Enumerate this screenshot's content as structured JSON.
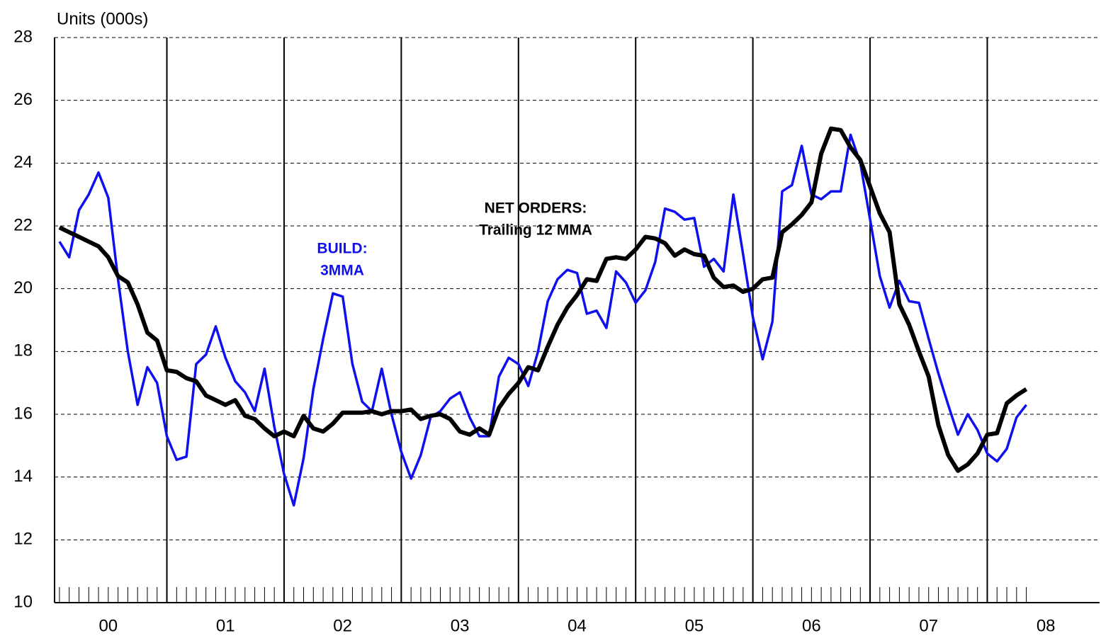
{
  "chart_data": {
    "type": "line",
    "y_axis_label": "Units (000s)",
    "annotations": [
      {
        "lines": [
          "BUILD:",
          "3MMA"
        ],
        "color": "#1010ee"
      },
      {
        "lines": [
          "NET ORDERS:",
          "Trailing 12 MMA"
        ],
        "color": "#000000"
      }
    ],
    "x": [
      1,
      2,
      3,
      4,
      5,
      6,
      7,
      8,
      9,
      10,
      11,
      12,
      13,
      14,
      15,
      16,
      17,
      18,
      19,
      20,
      21,
      22,
      23,
      24,
      25,
      26,
      27,
      28,
      29,
      30,
      31,
      32,
      33,
      34,
      35,
      36,
      37,
      38,
      39,
      40,
      41,
      42,
      43,
      44,
      45,
      46,
      47,
      48,
      49,
      50,
      51,
      52,
      53,
      54,
      55,
      56,
      57,
      58,
      59,
      60,
      61,
      62,
      63,
      64,
      65,
      66,
      67,
      68,
      69,
      70,
      71,
      72,
      73,
      74,
      75,
      76,
      77,
      78,
      79,
      80,
      81,
      82,
      83,
      84,
      85,
      86,
      87,
      88,
      89,
      90,
      91,
      92,
      93,
      94,
      95,
      96,
      97,
      98,
      99,
      100
    ],
    "series": [
      {
        "name": "BUILD: 3MMA",
        "color": "#1010ee",
        "values": [
          21.5,
          21.0,
          22.5,
          23.0,
          23.7,
          22.9,
          20.3,
          18.0,
          16.3,
          17.5,
          17.0,
          15.3,
          14.55,
          14.65,
          17.6,
          17.9,
          18.8,
          17.8,
          17.05,
          16.7,
          16.1,
          17.45,
          15.6,
          14.1,
          13.1,
          14.6,
          16.8,
          18.4,
          19.85,
          19.75,
          17.6,
          16.4,
          16.1,
          17.45,
          16.0,
          14.8,
          13.95,
          14.7,
          15.9,
          16.1,
          16.5,
          16.7,
          15.9,
          15.3,
          15.3,
          17.2,
          17.8,
          17.6,
          16.9,
          18.0,
          19.6,
          20.3,
          20.6,
          20.5,
          19.2,
          19.3,
          18.75,
          20.55,
          20.2,
          19.55,
          19.95,
          20.85,
          22.55,
          22.45,
          22.2,
          22.25,
          20.7,
          20.95,
          20.55,
          23.0,
          21.1,
          19.1,
          17.75,
          18.95,
          23.1,
          23.3,
          24.55,
          23.0,
          22.85,
          23.1,
          23.1,
          24.9,
          24.0,
          22.2,
          20.4,
          19.4,
          20.25,
          19.6,
          19.55,
          18.4,
          17.3,
          16.3,
          15.35,
          16.0,
          15.5,
          14.75,
          14.5,
          14.9,
          15.9,
          16.3
        ]
      },
      {
        "name": "NET ORDERS: Trailing 12 MMA",
        "color": "#000000",
        "values": [
          21.95,
          21.8,
          21.65,
          21.5,
          21.35,
          21.0,
          20.4,
          20.2,
          19.5,
          18.6,
          18.35,
          17.4,
          17.35,
          17.15,
          17.05,
          16.6,
          16.45,
          16.3,
          16.45,
          15.95,
          15.85,
          15.55,
          15.3,
          15.45,
          15.3,
          15.95,
          15.55,
          15.45,
          15.7,
          16.05,
          16.05,
          16.05,
          16.1,
          16.0,
          16.1,
          16.1,
          16.15,
          15.85,
          15.95,
          16.0,
          15.85,
          15.45,
          15.35,
          15.55,
          15.35,
          16.2,
          16.65,
          17.0,
          17.5,
          17.4,
          18.15,
          18.85,
          19.4,
          19.8,
          20.3,
          20.25,
          20.95,
          21.0,
          20.95,
          21.25,
          21.65,
          21.6,
          21.45,
          21.05,
          21.25,
          21.1,
          21.05,
          20.35,
          20.05,
          20.1,
          19.9,
          20.0,
          20.3,
          20.35,
          21.8,
          22.05,
          22.35,
          22.75,
          24.3,
          25.1,
          25.05,
          24.5,
          24.1,
          23.25,
          22.4,
          21.8,
          19.5,
          18.85,
          18.0,
          17.2,
          15.65,
          14.7,
          14.2,
          14.4,
          14.75,
          15.35,
          15.4,
          16.35,
          16.6,
          16.8
        ]
      }
    ],
    "xlim": [
      0.5,
      107.5
    ],
    "xticks": [
      {
        "value": 6,
        "label": "00"
      },
      {
        "value": 18,
        "label": "01"
      },
      {
        "value": 30,
        "label": "02"
      },
      {
        "value": 42,
        "label": "03"
      },
      {
        "value": 54,
        "label": "04"
      },
      {
        "value": 66,
        "label": "05"
      },
      {
        "value": 78,
        "label": "06"
      },
      {
        "value": 90,
        "label": "07"
      },
      {
        "value": 102,
        "label": "08"
      }
    ],
    "year_dividers": [
      12,
      24,
      36,
      48,
      60,
      72,
      84,
      96
    ],
    "ylim": [
      10,
      28
    ],
    "yticks": [
      10,
      12,
      14,
      16,
      18,
      20,
      22,
      24,
      26,
      28
    ],
    "grid": true
  }
}
